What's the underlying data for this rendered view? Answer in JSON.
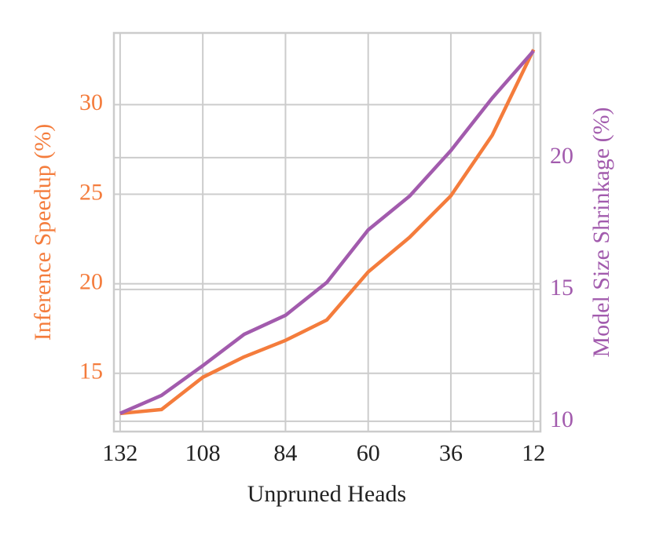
{
  "chart_data": {
    "type": "line",
    "xlabel": "Unpruned Heads",
    "ylabel": "Inference Speedup (%)",
    "y2label": "Model Size Shrinkage (%)",
    "x": [
      132,
      120,
      108,
      96,
      84,
      72,
      60,
      48,
      36,
      24,
      12
    ],
    "xlim": [
      133.8,
      10
    ],
    "xticks": [
      132,
      108,
      84,
      60,
      36,
      12
    ],
    "ylim": [
      11.75,
      34.0
    ],
    "yticks": [
      15,
      20,
      25,
      30
    ],
    "y2lim": [
      9.61,
      24.73
    ],
    "y2ticks": [
      10,
      15,
      20
    ],
    "grid": true,
    "series": [
      {
        "color": "#f47c3c",
        "values": [
          12.76,
          12.98,
          14.78,
          15.92,
          16.84,
          17.98,
          20.66,
          22.59,
          24.91,
          28.29,
          33.07
        ]
      },
      {
        "color": "#a25bad",
        "axis": "y2",
        "values": [
          10.3,
          10.98,
          12.11,
          13.3,
          14.02,
          15.27,
          17.26,
          18.54,
          20.27,
          22.26,
          24.05
        ]
      }
    ]
  }
}
